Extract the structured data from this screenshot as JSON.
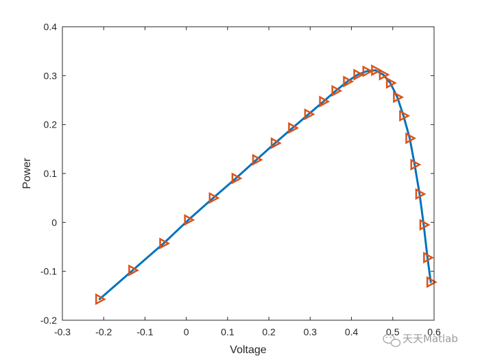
{
  "chart_data": {
    "type": "line",
    "title": "",
    "xlabel": "Voltage",
    "ylabel": "Power",
    "xlim": [
      -0.3,
      0.6
    ],
    "ylim": [
      -0.2,
      0.4
    ],
    "xticks": [
      -0.3,
      -0.2,
      -0.1,
      0,
      0.1,
      0.2,
      0.3,
      0.4,
      0.5,
      0.6
    ],
    "yticks": [
      -0.2,
      -0.1,
      0,
      0.1,
      0.2,
      0.3,
      0.4
    ],
    "xtick_labels": [
      "-0.3",
      "-0.2",
      "-0.1",
      "0",
      "0.1",
      "0.2",
      "0.3",
      "0.4",
      "0.5",
      "0.6"
    ],
    "ytick_labels": [
      "-0.2",
      "-0.1",
      "0",
      "0.1",
      "0.2",
      "0.3",
      "0.4"
    ],
    "grid": false,
    "series": [
      {
        "style": "line",
        "color": "#0072BD",
        "x": [
          -0.21,
          -0.13,
          -0.055,
          0.005,
          0.065,
          0.12,
          0.17,
          0.215,
          0.257,
          0.296,
          0.332,
          0.362,
          0.39,
          0.415,
          0.437,
          0.458,
          0.477,
          0.494,
          0.511,
          0.526,
          0.541,
          0.553,
          0.565,
          0.575,
          0.584,
          0.592
        ],
        "y": [
          -0.157,
          -0.098,
          -0.043,
          0.005,
          0.05,
          0.09,
          0.128,
          0.162,
          0.193,
          0.221,
          0.247,
          0.269,
          0.288,
          0.302,
          0.309,
          0.311,
          0.302,
          0.285,
          0.256,
          0.218,
          0.172,
          0.118,
          0.058,
          -0.005,
          -0.072,
          -0.122
        ]
      },
      {
        "style": "markers",
        "marker": "triangle-right",
        "color": "#D95319",
        "x": [
          -0.21,
          -0.13,
          -0.055,
          0.005,
          0.065,
          0.12,
          0.17,
          0.215,
          0.257,
          0.296,
          0.332,
          0.362,
          0.39,
          0.415,
          0.437,
          0.458,
          0.477,
          0.494,
          0.511,
          0.526,
          0.541,
          0.553,
          0.565,
          0.575,
          0.584,
          0.592
        ],
        "y": [
          -0.157,
          -0.098,
          -0.043,
          0.005,
          0.05,
          0.09,
          0.128,
          0.162,
          0.193,
          0.221,
          0.247,
          0.269,
          0.288,
          0.302,
          0.309,
          0.311,
          0.302,
          0.285,
          0.256,
          0.218,
          0.172,
          0.118,
          0.058,
          -0.005,
          -0.072,
          -0.122
        ]
      }
    ]
  },
  "watermark": {
    "icon": "wechat-logo-icon",
    "text": "天天Matlab"
  },
  "colors": {
    "axis": "#262626",
    "line": "#0072BD",
    "marker": "#D95319",
    "background": "#ffffff"
  }
}
